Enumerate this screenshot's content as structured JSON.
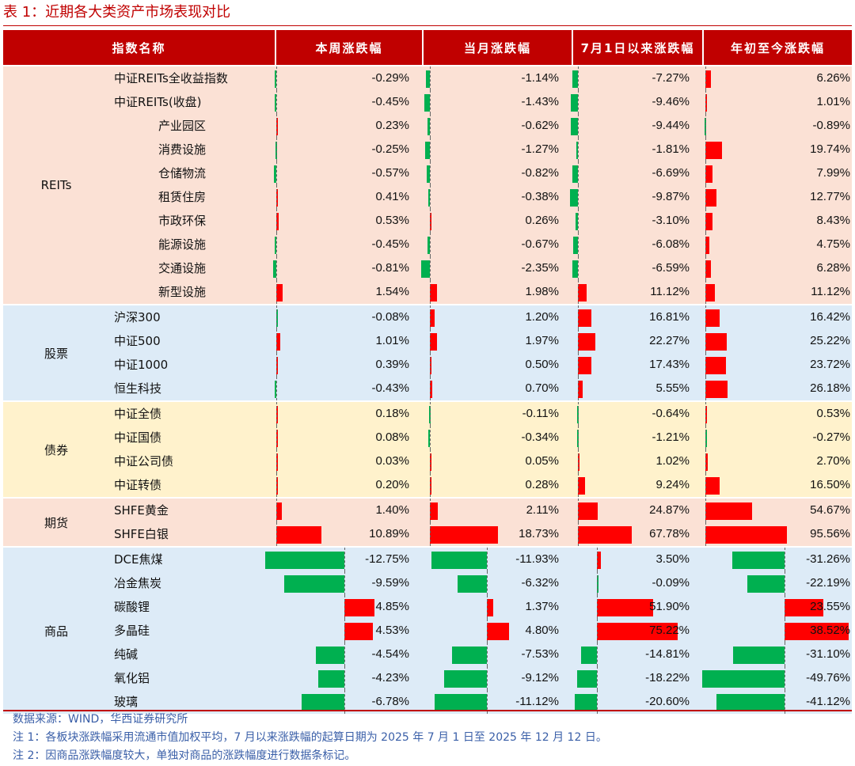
{
  "title": "表 1：近期各大类资产市场表现对比",
  "columns": [
    "指数名称",
    "本周涨跌幅",
    "当月涨跌幅",
    "7月1日以来涨跌幅",
    "年初至今涨跌幅"
  ],
  "colors": {
    "header_bg": "#C00000",
    "positive_bar": "#FF0000",
    "negative_bar": "#00B050",
    "reits_bg": "#FBE1D5",
    "equity_bg": "#DDEBF7",
    "bond_bg": "#FFF2CC",
    "futures_bg": "#FBE1D5",
    "commodity_bg": "#DDEBF7",
    "note_text": "#3A5FA8"
  },
  "groups": [
    {
      "label": "REITs",
      "bg": "reits",
      "rows": [
        {
          "name": "中证REITs全收益指数",
          "indent": 0,
          "week": "-0.29%",
          "month": "-1.14%",
          "since_jul1": "-7.27%",
          "ytd": "6.26%",
          "bars": [
            -0.29,
            -1.14,
            -7.27,
            6.26
          ]
        },
        {
          "name": "中证REITs(收盘)",
          "indent": 0,
          "week": "-0.45%",
          "month": "-1.43%",
          "since_jul1": "-9.46%",
          "ytd": "1.01%",
          "bars": [
            -0.45,
            -1.43,
            -9.46,
            1.01
          ]
        },
        {
          "name": "产业园区",
          "indent": 1,
          "week": "0.23%",
          "month": "-0.62%",
          "since_jul1": "-9.44%",
          "ytd": "-0.89%",
          "bars": [
            0.23,
            -0.62,
            -9.44,
            -0.89
          ]
        },
        {
          "name": "消费设施",
          "indent": 1,
          "week": "-0.25%",
          "month": "-1.27%",
          "since_jul1": "-1.81%",
          "ytd": "19.74%",
          "bars": [
            -0.25,
            -1.27,
            -1.81,
            19.74
          ]
        },
        {
          "name": "仓储物流",
          "indent": 1,
          "week": "-0.57%",
          "month": "-0.82%",
          "since_jul1": "-6.69%",
          "ytd": "7.99%",
          "bars": [
            -0.57,
            -0.82,
            -6.69,
            7.99
          ]
        },
        {
          "name": "租赁住房",
          "indent": 1,
          "week": "0.41%",
          "month": "-0.38%",
          "since_jul1": "-9.87%",
          "ytd": "12.77%",
          "bars": [
            0.41,
            -0.38,
            -9.87,
            12.77
          ]
        },
        {
          "name": "市政环保",
          "indent": 1,
          "week": "0.53%",
          "month": "0.26%",
          "since_jul1": "-3.10%",
          "ytd": "8.43%",
          "bars": [
            0.53,
            0.26,
            -3.1,
            8.43
          ]
        },
        {
          "name": "能源设施",
          "indent": 1,
          "week": "-0.45%",
          "month": "-0.67%",
          "since_jul1": "-6.08%",
          "ytd": "4.75%",
          "bars": [
            -0.45,
            -0.67,
            -6.08,
            4.75
          ]
        },
        {
          "name": "交通设施",
          "indent": 1,
          "week": "-0.81%",
          "month": "-2.35%",
          "since_jul1": "-6.59%",
          "ytd": "6.28%",
          "bars": [
            -0.81,
            -2.35,
            -6.59,
            6.28
          ]
        },
        {
          "name": "新型设施",
          "indent": 1,
          "week": "1.54%",
          "month": "1.98%",
          "since_jul1": "11.12%",
          "ytd": "11.12%",
          "bars": [
            1.54,
            1.98,
            11.12,
            11.12
          ]
        }
      ]
    },
    {
      "label": "股票",
      "bg": "equity",
      "rows": [
        {
          "name": "沪深300",
          "indent": 0,
          "week": "-0.08%",
          "month": "1.20%",
          "since_jul1": "16.81%",
          "ytd": "16.42%",
          "bars": [
            -0.08,
            1.2,
            16.81,
            16.42
          ]
        },
        {
          "name": "中证500",
          "indent": 0,
          "week": "1.01%",
          "month": "1.97%",
          "since_jul1": "22.27%",
          "ytd": "25.22%",
          "bars": [
            1.01,
            1.97,
            22.27,
            25.22
          ]
        },
        {
          "name": "中证1000",
          "indent": 0,
          "week": "0.39%",
          "month": "0.50%",
          "since_jul1": "17.43%",
          "ytd": "23.72%",
          "bars": [
            0.39,
            0.5,
            17.43,
            23.72
          ]
        },
        {
          "name": "恒生科技",
          "indent": 0,
          "week": "-0.43%",
          "month": "0.70%",
          "since_jul1": "5.55%",
          "ytd": "26.18%",
          "bars": [
            -0.43,
            0.7,
            5.55,
            26.18
          ]
        }
      ]
    },
    {
      "label": "债券",
      "bg": "bond",
      "rows": [
        {
          "name": "中证全债",
          "indent": 0,
          "week": "0.18%",
          "month": "-0.11%",
          "since_jul1": "-0.64%",
          "ytd": "0.53%",
          "bars": [
            0.18,
            -0.11,
            -0.64,
            0.53
          ]
        },
        {
          "name": "中证国债",
          "indent": 0,
          "week": "0.08%",
          "month": "-0.34%",
          "since_jul1": "-1.21%",
          "ytd": "-0.27%",
          "bars": [
            0.08,
            -0.34,
            -1.21,
            -0.27
          ]
        },
        {
          "name": "中证公司债",
          "indent": 0,
          "week": "0.03%",
          "month": "0.05%",
          "since_jul1": "1.02%",
          "ytd": "2.70%",
          "bars": [
            0.03,
            0.05,
            1.02,
            2.7
          ]
        },
        {
          "name": "中证转债",
          "indent": 0,
          "week": "0.20%",
          "month": "0.28%",
          "since_jul1": "9.24%",
          "ytd": "16.50%",
          "bars": [
            0.2,
            0.28,
            9.24,
            16.5
          ]
        }
      ]
    },
    {
      "label": "期货",
      "bg": "futures",
      "rows": [
        {
          "name": "SHFE黄金",
          "indent": 0,
          "week": "1.40%",
          "month": "2.11%",
          "since_jul1": "24.87%",
          "ytd": "54.67%",
          "bars": [
            1.4,
            2.11,
            24.87,
            54.67
          ]
        },
        {
          "name": "SHFE白银",
          "indent": 0,
          "week": "10.89%",
          "month": "18.73%",
          "since_jul1": "67.78%",
          "ytd": "95.56%",
          "bars": [
            10.89,
            18.73,
            67.78,
            95.56
          ]
        }
      ]
    },
    {
      "label": "商品",
      "bg": "commodity",
      "rows": [
        {
          "name": "DCE焦煤",
          "indent": 0,
          "week": "-12.75%",
          "month": "-11.93%",
          "since_jul1": "3.50%",
          "ytd": "-31.26%",
          "bars": [
            -12.75,
            -11.93,
            3.5,
            -31.26
          ]
        },
        {
          "name": "冶金焦炭",
          "indent": 0,
          "week": "-9.59%",
          "month": "-6.32%",
          "since_jul1": "-0.09%",
          "ytd": "-22.19%",
          "bars": [
            -9.59,
            -6.32,
            -0.09,
            -22.19
          ]
        },
        {
          "name": "碳酸锂",
          "indent": 0,
          "week": "4.85%",
          "month": "1.37%",
          "since_jul1": "51.90%",
          "ytd": "23.55%",
          "bars": [
            4.85,
            1.37,
            51.9,
            23.55
          ]
        },
        {
          "name": "多晶硅",
          "indent": 0,
          "week": "4.53%",
          "month": "4.80%",
          "since_jul1": "75.22%",
          "ytd": "38.52%",
          "bars": [
            4.53,
            4.8,
            75.22,
            38.52
          ]
        },
        {
          "name": "纯碱",
          "indent": 0,
          "week": "-4.54%",
          "month": "-7.53%",
          "since_jul1": "-14.81%",
          "ytd": "-31.10%",
          "bars": [
            -4.54,
            -7.53,
            -14.81,
            -31.1
          ]
        },
        {
          "name": "氧化铝",
          "indent": 0,
          "week": "-4.23%",
          "month": "-9.12%",
          "since_jul1": "-18.22%",
          "ytd": "-49.76%",
          "bars": [
            -4.23,
            -9.12,
            -18.22,
            -49.76
          ]
        },
        {
          "name": "玻璃",
          "indent": 0,
          "week": "-6.78%",
          "month": "-11.12%",
          "since_jul1": "-20.60%",
          "ytd": "-41.12%",
          "bars": [
            -6.78,
            -11.12,
            -20.6,
            -41.12
          ]
        }
      ]
    }
  ],
  "notes": [
    "数据来源：WIND，华西证券研究所",
    "注 1：各板块涨跌幅采用流通市值加权平均，7 月以来涨跌幅的起算日期为 2025 年 7 月 1 日至 2025 年 12 月 12 日。",
    "注 2：因商品涨跌幅度较大，单独对商品的涨跌幅度进行数据条标记。"
  ]
}
